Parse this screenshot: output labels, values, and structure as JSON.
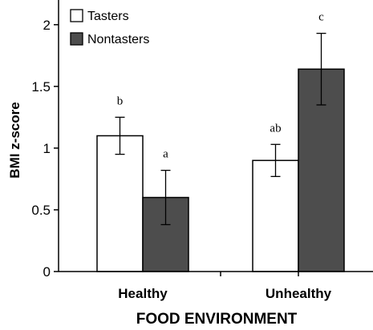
{
  "chart_data": {
    "type": "bar",
    "title": "",
    "xlabel": "FOOD ENVIRONMENT",
    "ylabel": "BMI z-score",
    "ylim": [
      0,
      2.2
    ],
    "yticks": [
      "0",
      "0.5",
      "1",
      "1.5",
      "2"
    ],
    "ytick_values": [
      0,
      0.5,
      1,
      1.5,
      2
    ],
    "categories": [
      "Healthy",
      "Unhealthy"
    ],
    "legend_position": "top-left",
    "series": [
      {
        "name": "Tasters",
        "color": "#ffffff",
        "values": [
          1.1,
          0.9
        ],
        "error_low": [
          0.95,
          0.77
        ],
        "error_high": [
          1.25,
          1.03
        ],
        "sig_labels": [
          "b",
          "ab"
        ]
      },
      {
        "name": "Nontasters",
        "color": "#4d4d4d",
        "values": [
          0.6,
          1.64
        ],
        "error_low": [
          0.38,
          1.35
        ],
        "error_high": [
          0.82,
          1.93
        ],
        "sig_labels": [
          "a",
          "c"
        ]
      }
    ]
  }
}
